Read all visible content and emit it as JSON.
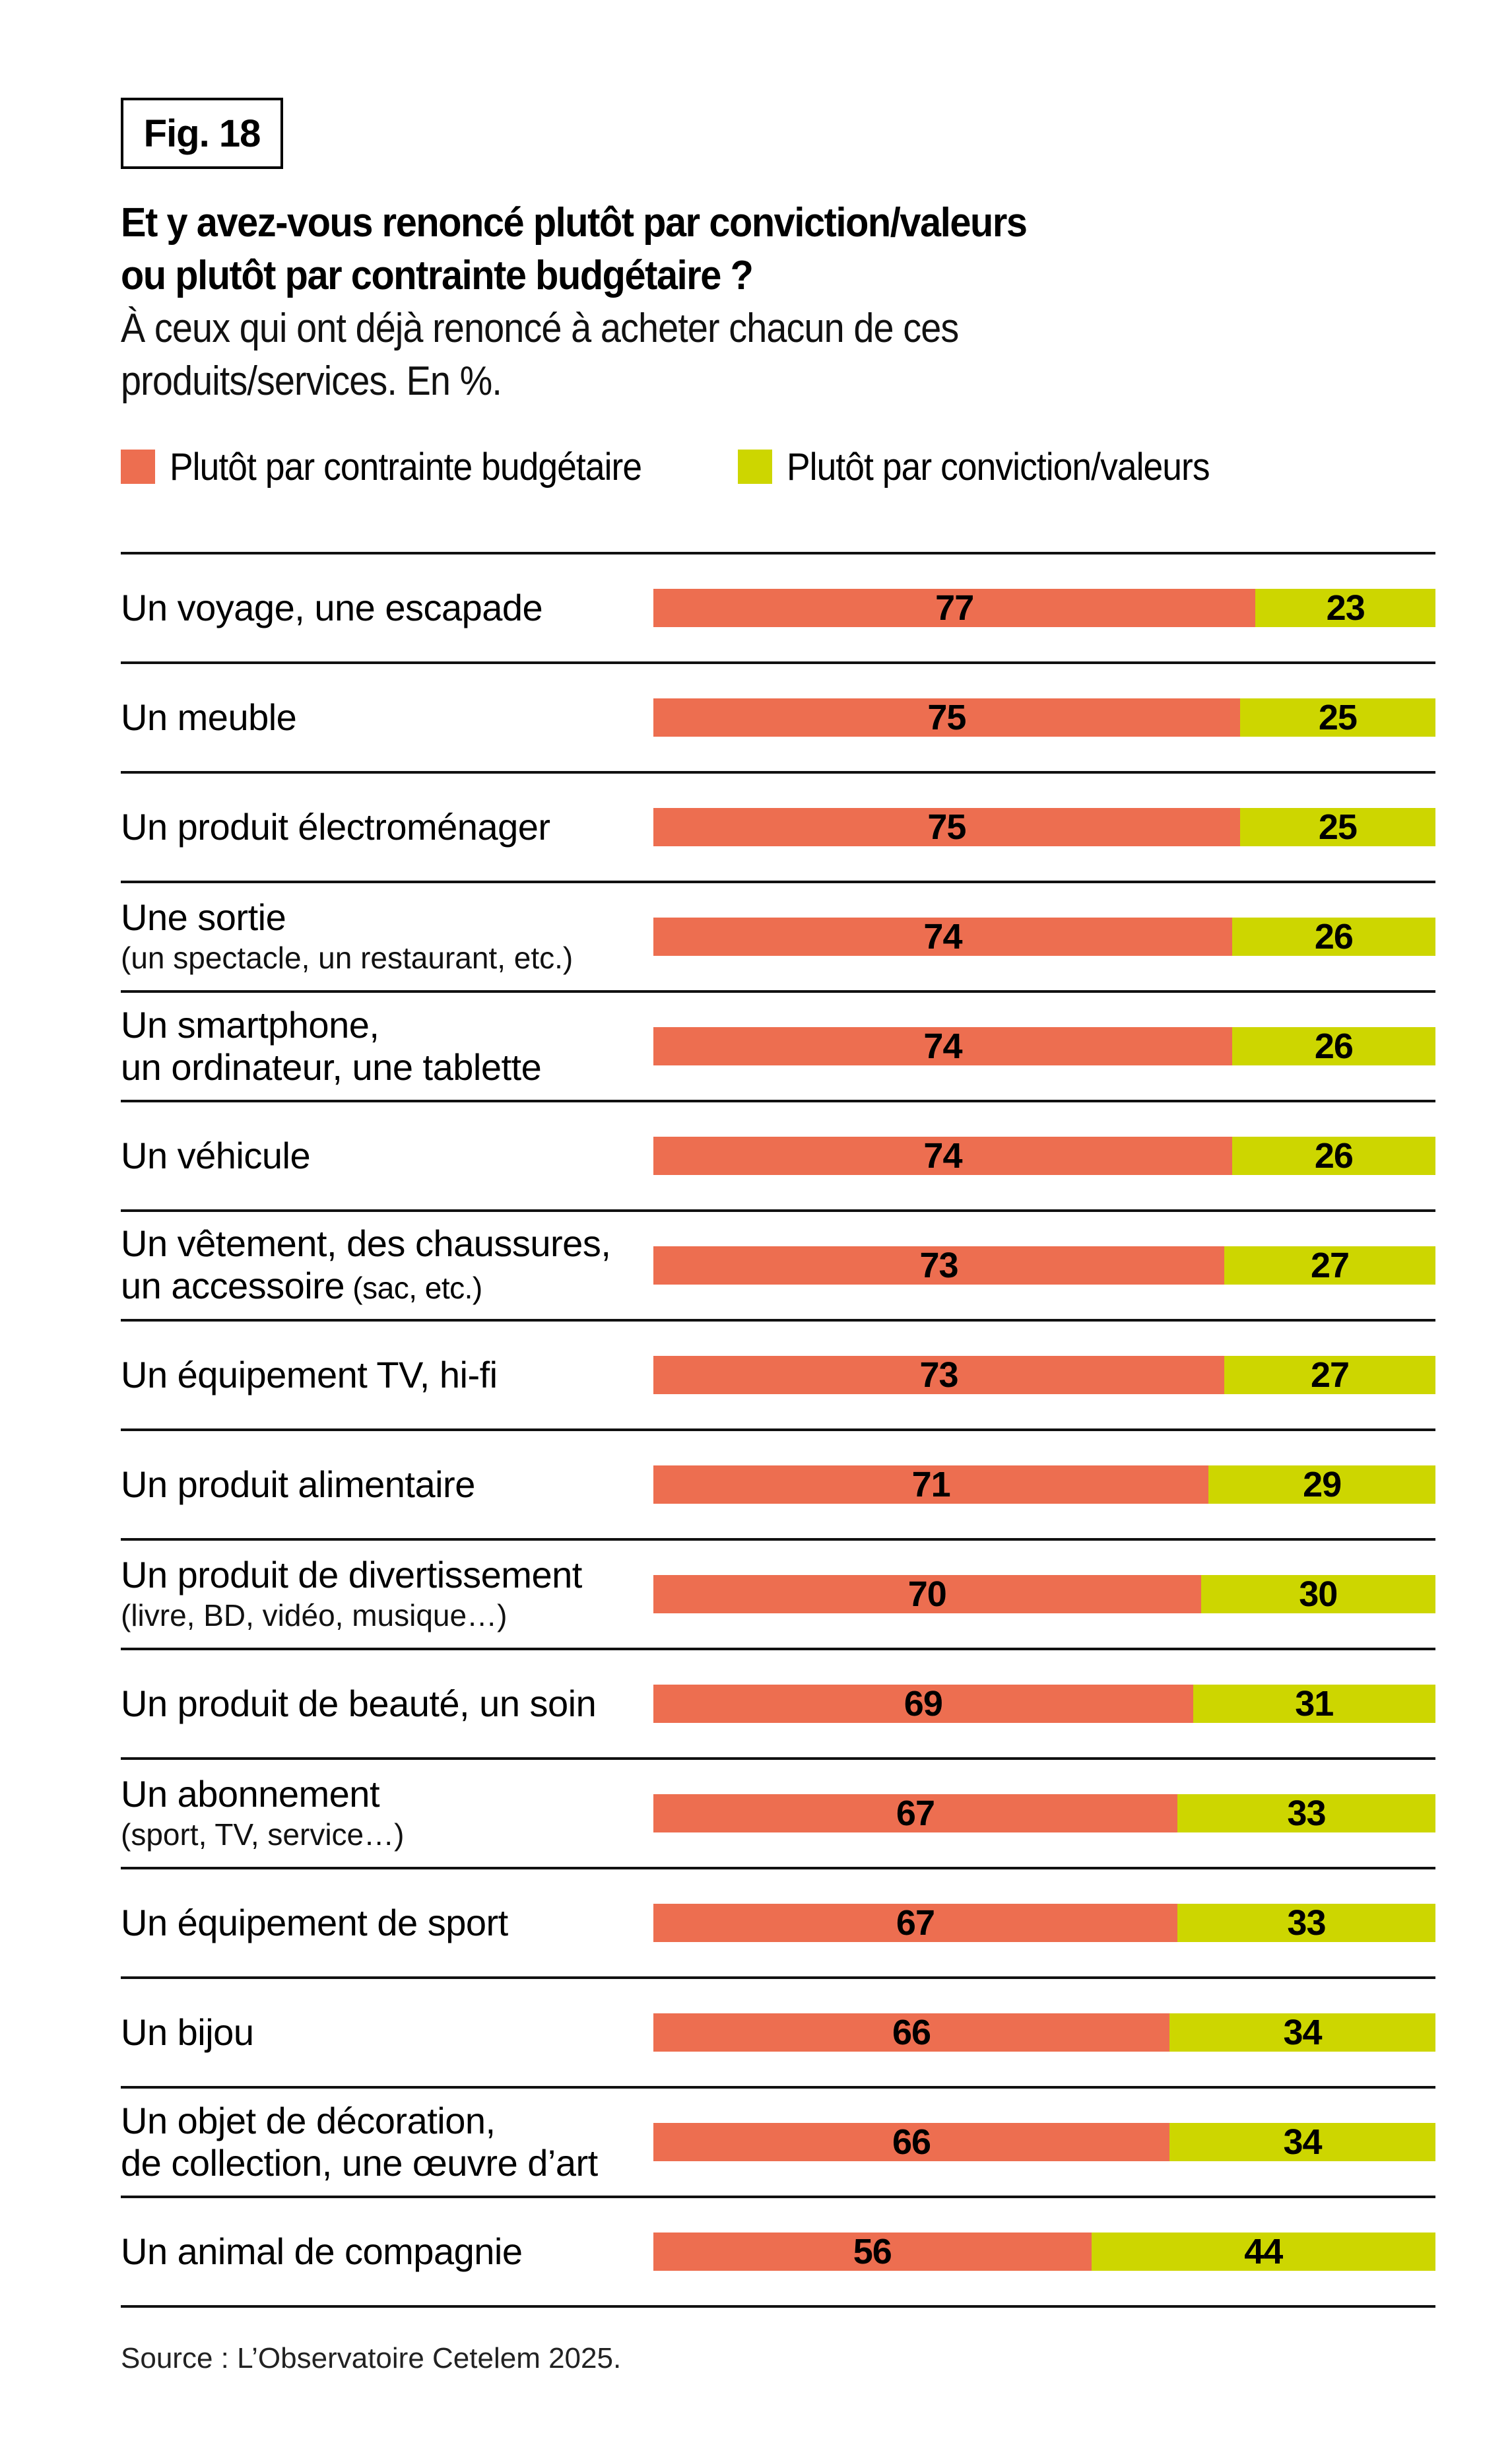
{
  "figure_label": "Fig. 18",
  "title_line1": "Et y avez-vous renoncé plutôt par conviction/valeurs",
  "title_line2": "ou plutôt par contrainte budgétaire ?",
  "subtitle_line1": "À  ceux qui ont déjà renoncé à acheter chacun de ces",
  "subtitle_line2": "produits/services. En %.",
  "legend": [
    {
      "label": "Plutôt par contrainte budgétaire",
      "color": "#ED6E50"
    },
    {
      "label": "Plutôt par conviction/valeurs",
      "color": "#CDD600"
    }
  ],
  "source": "Source : L’Observatoire Cetelem 2025.",
  "chart_data": {
    "type": "bar",
    "orientation": "horizontal",
    "stacked": true,
    "title": "Et y avez-vous renoncé plutôt par conviction/valeurs ou plutôt par contrainte budgétaire ?",
    "subtitle": "À ceux qui ont déjà renoncé à acheter chacun de ces produits/services. En %.",
    "xlabel": "",
    "ylabel": "",
    "xlim": [
      0,
      100
    ],
    "grid": false,
    "legend_position": "top-left",
    "categories": [
      {
        "main": "Un voyage, une escapade",
        "sub": "",
        "sub_inline": false
      },
      {
        "main": "Un meuble",
        "sub": "",
        "sub_inline": false
      },
      {
        "main": "Un produit électroménager",
        "sub": "",
        "sub_inline": false
      },
      {
        "main": "Une sortie",
        "sub": "(un spectacle, un restaurant, etc.)",
        "sub_inline": false
      },
      {
        "main": "Un smartphone,",
        "main2": "un ordinateur, une tablette",
        "sub": "",
        "sub_inline": false
      },
      {
        "main": "Un véhicule",
        "sub": "",
        "sub_inline": false
      },
      {
        "main": "Un vêtement, des chaussures,",
        "main2": "un accessoire",
        "sub": "(sac, etc.)",
        "sub_inline": true
      },
      {
        "main": "Un équipement TV, hi-fi",
        "sub": "",
        "sub_inline": false
      },
      {
        "main": "Un produit alimentaire",
        "sub": "",
        "sub_inline": false
      },
      {
        "main": "Un produit de divertissement",
        "sub": "(livre, BD, vidéo, musique…)",
        "sub_inline": false
      },
      {
        "main": "Un produit de beauté, un soin",
        "sub": "",
        "sub_inline": false
      },
      {
        "main": "Un abonnement",
        "sub": "(sport, TV, service…)",
        "sub_inline": false
      },
      {
        "main": "Un équipement de sport",
        "sub": "",
        "sub_inline": false
      },
      {
        "main": "Un bijou",
        "sub": "",
        "sub_inline": false
      },
      {
        "main": "Un objet de décoration,",
        "main2": "de collection, une œuvre d’art",
        "sub": "",
        "sub_inline": false
      },
      {
        "main": "Un animal de compagnie",
        "sub": "",
        "sub_inline": false
      }
    ],
    "series": [
      {
        "name": "Plutôt par contrainte budgétaire",
        "color": "#ED6E50",
        "values": [
          77,
          75,
          75,
          74,
          74,
          74,
          73,
          73,
          71,
          70,
          69,
          67,
          67,
          66,
          66,
          56
        ]
      },
      {
        "name": "Plutôt par conviction/valeurs",
        "color": "#CDD600",
        "values": [
          23,
          25,
          25,
          26,
          26,
          26,
          27,
          27,
          29,
          30,
          31,
          33,
          33,
          34,
          34,
          44
        ]
      }
    ]
  }
}
